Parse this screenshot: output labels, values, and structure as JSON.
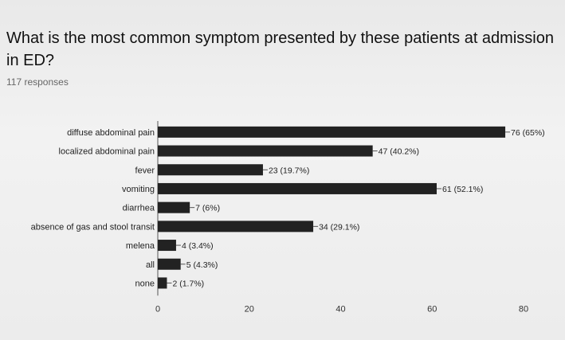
{
  "question": "What is the most common symptom presented by these patients at admission in ED?",
  "responses": "117 responses",
  "colors": {
    "bar": "#222222",
    "axis": "#555555",
    "grid": "#bbbbbb"
  },
  "chart_data": {
    "type": "bar",
    "orientation": "horizontal",
    "categories": [
      "diffuse abdominal pain",
      "localized abdominal pain",
      "fever",
      "vomiting",
      "diarrhea",
      "absence of gas and stool transit",
      "melena",
      "all",
      "none"
    ],
    "values": [
      76,
      47,
      23,
      61,
      7,
      34,
      4,
      5,
      2
    ],
    "data_labels": [
      "76 (65%)",
      "47 (40.2%)",
      "23 (19.7%)",
      "61 (52.1%)",
      "7 (6%)",
      "34 (29.1%)",
      "4 (3.4%)",
      "5 (4.3%)",
      "2 (1.7%)"
    ],
    "xlim": [
      0,
      80
    ],
    "xticks": [
      0,
      20,
      40,
      60,
      80
    ],
    "grid": false,
    "legend": "none"
  }
}
